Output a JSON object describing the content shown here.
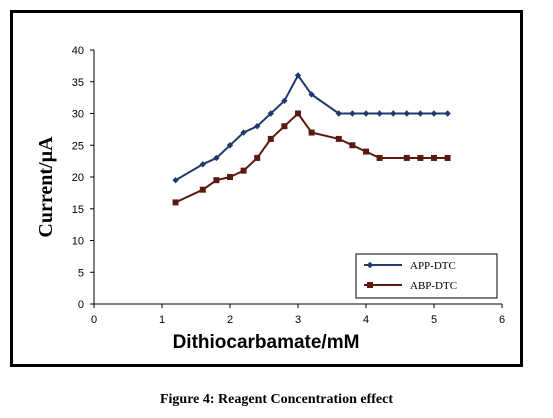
{
  "caption": "Figure 4: Reagent Concentration effect",
  "chart_data": {
    "type": "line",
    "title": "",
    "xlabel": "Dithiocarbamate/mM",
    "ylabel": "Current/µA",
    "xlim": [
      0,
      6
    ],
    "ylim": [
      0,
      40
    ],
    "xticks": [
      0,
      1,
      2,
      3,
      4,
      5,
      6
    ],
    "yticks": [
      0,
      5,
      10,
      15,
      20,
      25,
      30,
      35,
      40
    ],
    "grid": false,
    "legend_position": "bottom-right",
    "series": [
      {
        "name": "APP-DTC",
        "marker": "diamond",
        "color": "#1f3a6b",
        "x": [
          1.2,
          1.6,
          1.8,
          2.0,
          2.2,
          2.4,
          2.6,
          2.8,
          3.0,
          3.2,
          3.6,
          3.8,
          4.0,
          4.2,
          4.4,
          4.6,
          4.8,
          5.0,
          5.2
        ],
        "y": [
          19.5,
          22,
          23,
          25,
          27,
          28,
          30,
          32,
          36,
          33,
          30,
          30,
          30,
          30,
          30,
          30,
          30,
          30,
          30
        ]
      },
      {
        "name": "ABP-DTC",
        "marker": "square",
        "color": "#5a1a12",
        "x": [
          1.2,
          1.6,
          1.8,
          2.0,
          2.2,
          2.4,
          2.6,
          2.8,
          3.0,
          3.2,
          3.6,
          3.8,
          4.0,
          4.2,
          4.6,
          4.8,
          5.0,
          5.2
        ],
        "y": [
          16,
          18,
          19.5,
          20,
          21,
          23,
          26,
          28,
          30,
          27,
          26,
          25,
          24,
          23,
          23,
          23,
          23,
          23
        ]
      }
    ]
  }
}
